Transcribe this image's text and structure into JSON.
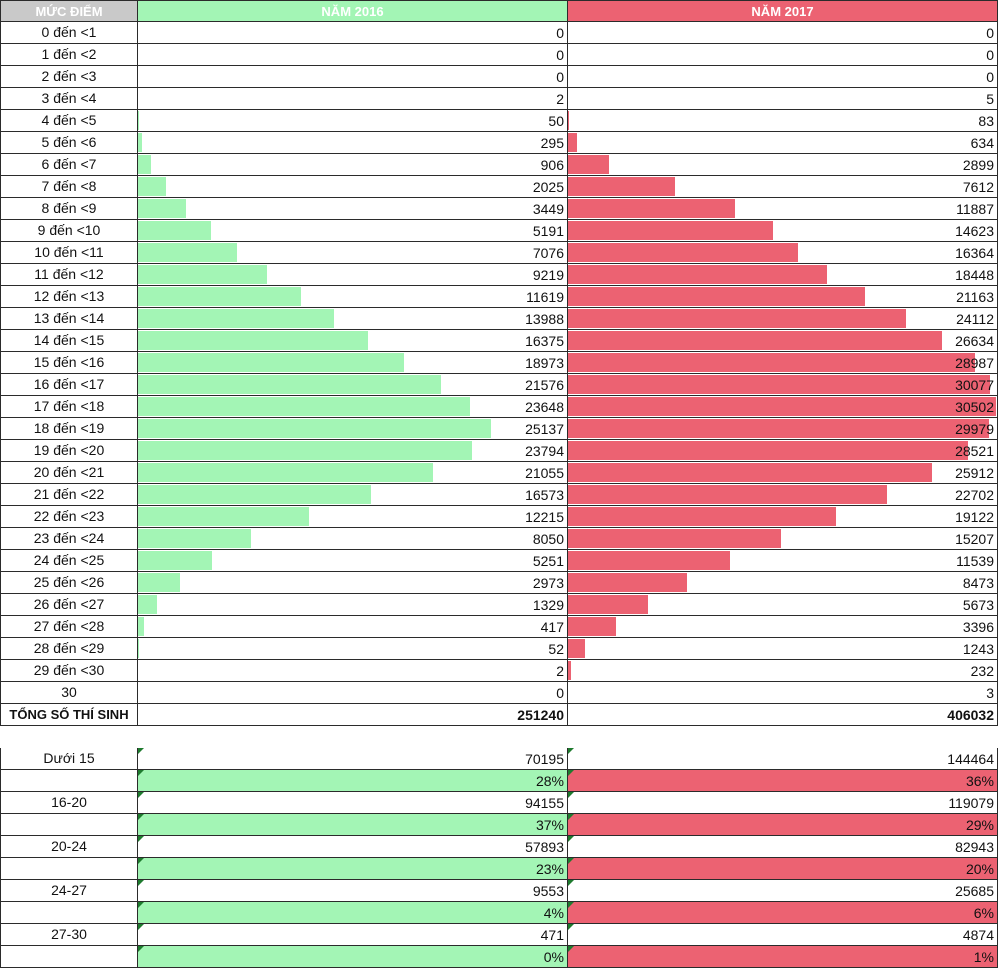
{
  "header": {
    "col0": "MỨC ĐIỂM",
    "col1": "NĂM 2016",
    "col2": "NĂM 2017"
  },
  "colors": {
    "year2016": "#a3f5b5",
    "year2017": "#ec6272",
    "header_label_bg": "#c9c9c9",
    "grid": "#2b2b2b"
  },
  "bar_max": 30502,
  "rows": [
    {
      "label": "0 đến <1",
      "v2016": 0,
      "v2017": 0
    },
    {
      "label": "1 đến <2",
      "v2016": 0,
      "v2017": 0
    },
    {
      "label": "2 đến <3",
      "v2016": 0,
      "v2017": 0
    },
    {
      "label": "3 đến <4",
      "v2016": 2,
      "v2017": 5
    },
    {
      "label": "4 đến <5",
      "v2016": 50,
      "v2017": 83
    },
    {
      "label": "5 đến <6",
      "v2016": 295,
      "v2017": 634
    },
    {
      "label": "6 đến <7",
      "v2016": 906,
      "v2017": 2899
    },
    {
      "label": "7 đến <8",
      "v2016": 2025,
      "v2017": 7612
    },
    {
      "label": "8 đến <9",
      "v2016": 3449,
      "v2017": 11887
    },
    {
      "label": "9 đến <10",
      "v2016": 5191,
      "v2017": 14623
    },
    {
      "label": "10 đến <11",
      "v2016": 7076,
      "v2017": 16364
    },
    {
      "label": "11 đến <12",
      "v2016": 9219,
      "v2017": 18448
    },
    {
      "label": "12 đến <13",
      "v2016": 11619,
      "v2017": 21163
    },
    {
      "label": "13 đến <14",
      "v2016": 13988,
      "v2017": 24112
    },
    {
      "label": "14 đến <15",
      "v2016": 16375,
      "v2017": 26634
    },
    {
      "label": "15 đến <16",
      "v2016": 18973,
      "v2017": 28987
    },
    {
      "label": "16 đến <17",
      "v2016": 21576,
      "v2017": 30077
    },
    {
      "label": "17 đến <18",
      "v2016": 23648,
      "v2017": 30502
    },
    {
      "label": "18 đến <19",
      "v2016": 25137,
      "v2017": 29979
    },
    {
      "label": "19 đến <20",
      "v2016": 23794,
      "v2017": 28521
    },
    {
      "label": "20 đến <21",
      "v2016": 21055,
      "v2017": 25912
    },
    {
      "label": "21 đến <22",
      "v2016": 16573,
      "v2017": 22702
    },
    {
      "label": "22 đến <23",
      "v2016": 12215,
      "v2017": 19122
    },
    {
      "label": "23 đến <24",
      "v2016": 8050,
      "v2017": 15207
    },
    {
      "label": "24 đến <25",
      "v2016": 5251,
      "v2017": 11539
    },
    {
      "label": "25 đến <26",
      "v2016": 2973,
      "v2017": 8473
    },
    {
      "label": "26 đến <27",
      "v2016": 1329,
      "v2017": 5673
    },
    {
      "label": "27 đến <28",
      "v2016": 417,
      "v2017": 3396
    },
    {
      "label": "28 đến <29",
      "v2016": 52,
      "v2017": 1243
    },
    {
      "label": "29 đến <30",
      "v2016": 2,
      "v2017": 232
    },
    {
      "label": "30",
      "v2016": 0,
      "v2017": 3
    }
  ],
  "total": {
    "label": "TỔNG SỐ THÍ SINH",
    "v2016": 251240,
    "v2017": 406032
  },
  "groups": [
    {
      "label": "Dưới 15",
      "count2016": "70195",
      "count2017": "144464",
      "pct2016": "28%",
      "pct2017": "36%"
    },
    {
      "label": "16-20",
      "count2016": "94155",
      "count2017": "119079",
      "pct2016": "37%",
      "pct2017": "29%"
    },
    {
      "label": "20-24",
      "count2016": "57893",
      "count2017": "82943",
      "pct2016": "23%",
      "pct2017": "20%"
    },
    {
      "label": "24-27",
      "count2016": "9553",
      "count2017": "25685",
      "pct2016": "4%",
      "pct2017": "6%"
    },
    {
      "label": "27-30",
      "count2016": "471",
      "count2017": "4874",
      "pct2016": "0%",
      "pct2017": "1%"
    }
  ]
}
